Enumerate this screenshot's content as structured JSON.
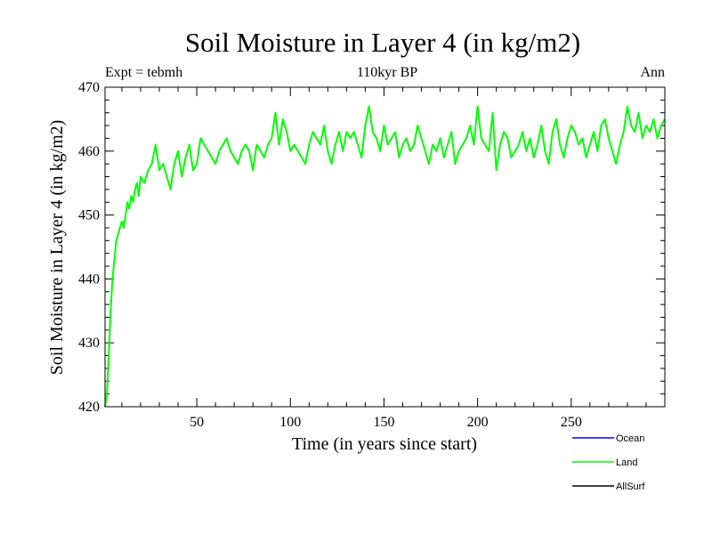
{
  "chart_data": {
    "type": "line",
    "title": "Soil Moisture in Layer 4 (in kg/m2)",
    "subtitle": "110kyr BP",
    "left_note": "Expt = tebmh",
    "right_note": "Ann",
    "xlabel": "Time (in years since start)",
    "ylabel": "Soil Moisture in Layer 4 (in kg/m2)",
    "xlim": [
      1,
      300
    ],
    "ylim": [
      420,
      470
    ],
    "xticks": [
      50,
      100,
      150,
      200,
      250
    ],
    "yticks": [
      420,
      430,
      440,
      450,
      460,
      470
    ],
    "legend_position": "bottom-right",
    "series": [
      {
        "name": "Land",
        "color": "#00ff00",
        "x": [
          1,
          2,
          3,
          4,
          5,
          6,
          7,
          8,
          9,
          10,
          11,
          12,
          13,
          14,
          15,
          16,
          17,
          18,
          19,
          20,
          22,
          24,
          26,
          28,
          30,
          32,
          34,
          36,
          38,
          40,
          42,
          44,
          46,
          48,
          50,
          52,
          54,
          56,
          58,
          60,
          62,
          64,
          66,
          68,
          70,
          72,
          74,
          76,
          78,
          80,
          82,
          84,
          86,
          88,
          90,
          92,
          94,
          96,
          98,
          100,
          102,
          104,
          106,
          108,
          110,
          112,
          114,
          116,
          118,
          120,
          122,
          124,
          126,
          128,
          130,
          132,
          134,
          136,
          138,
          140,
          142,
          144,
          146,
          148,
          150,
          152,
          154,
          156,
          158,
          160,
          162,
          164,
          166,
          168,
          170,
          172,
          174,
          176,
          178,
          180,
          182,
          184,
          186,
          188,
          190,
          192,
          194,
          196,
          198,
          200,
          202,
          204,
          206,
          208,
          210,
          212,
          214,
          216,
          218,
          220,
          222,
          224,
          226,
          228,
          230,
          232,
          234,
          236,
          238,
          240,
          242,
          244,
          246,
          248,
          250,
          252,
          254,
          256,
          258,
          260,
          262,
          264,
          266,
          268,
          270,
          272,
          274,
          276,
          278,
          280,
          282,
          284,
          286,
          288,
          290,
          292,
          294,
          296,
          298,
          300
        ],
        "values": [
          420,
          422,
          428,
          435,
          440,
          443,
          446,
          447,
          448,
          449,
          448,
          450,
          452,
          451,
          453,
          452,
          454,
          455,
          453,
          456,
          455,
          457,
          458,
          461,
          457,
          458,
          456,
          454,
          458,
          460,
          456,
          459,
          461,
          457,
          458,
          462,
          461,
          460,
          459,
          458,
          460,
          461,
          462,
          460,
          459,
          458,
          460,
          461,
          460,
          457,
          461,
          460,
          459,
          461,
          462,
          466,
          461,
          465,
          463,
          460,
          461,
          460,
          459,
          458,
          461,
          463,
          462,
          461,
          464,
          460,
          458,
          461,
          463,
          460,
          463,
          462,
          463,
          461,
          459,
          464,
          467,
          463,
          462,
          460,
          464,
          461,
          462,
          463,
          459,
          461,
          462,
          460,
          461,
          464,
          462,
          460,
          458,
          461,
          460,
          462,
          459,
          461,
          463,
          458,
          460,
          461,
          462,
          464,
          461,
          467,
          462,
          461,
          460,
          466,
          457,
          461,
          463,
          462,
          459,
          460,
          461,
          463,
          460,
          462,
          459,
          461,
          464,
          460,
          458,
          463,
          465,
          461,
          459,
          462,
          464,
          463,
          461,
          462,
          459,
          461,
          463,
          460,
          464,
          465,
          462,
          460,
          458,
          461,
          463,
          467,
          464,
          463,
          466,
          462,
          464,
          463,
          465,
          462,
          464,
          465
        ]
      }
    ],
    "legend": [
      {
        "label": "Ocean",
        "color": "#0000ff"
      },
      {
        "label": "Land",
        "color": "#00ff00"
      },
      {
        "label": "AllSurf",
        "color": "#000000"
      }
    ]
  }
}
